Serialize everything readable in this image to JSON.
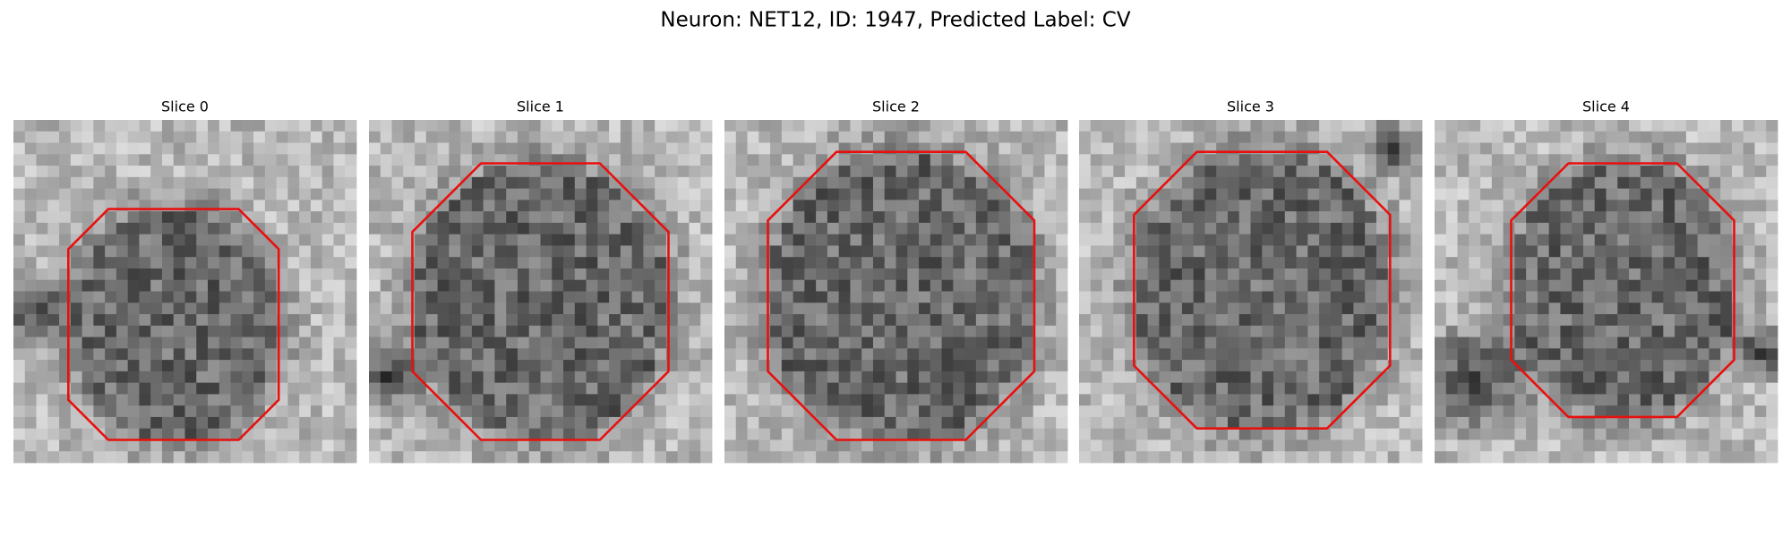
{
  "title": "Neuron: NET12, ID: 1947, Predicted Label: CV",
  "panels": [
    {
      "title": "Slice 0"
    },
    {
      "title": "Slice 1"
    },
    {
      "title": "Slice 2"
    },
    {
      "title": "Slice 3"
    },
    {
      "title": "Slice 4"
    }
  ]
}
